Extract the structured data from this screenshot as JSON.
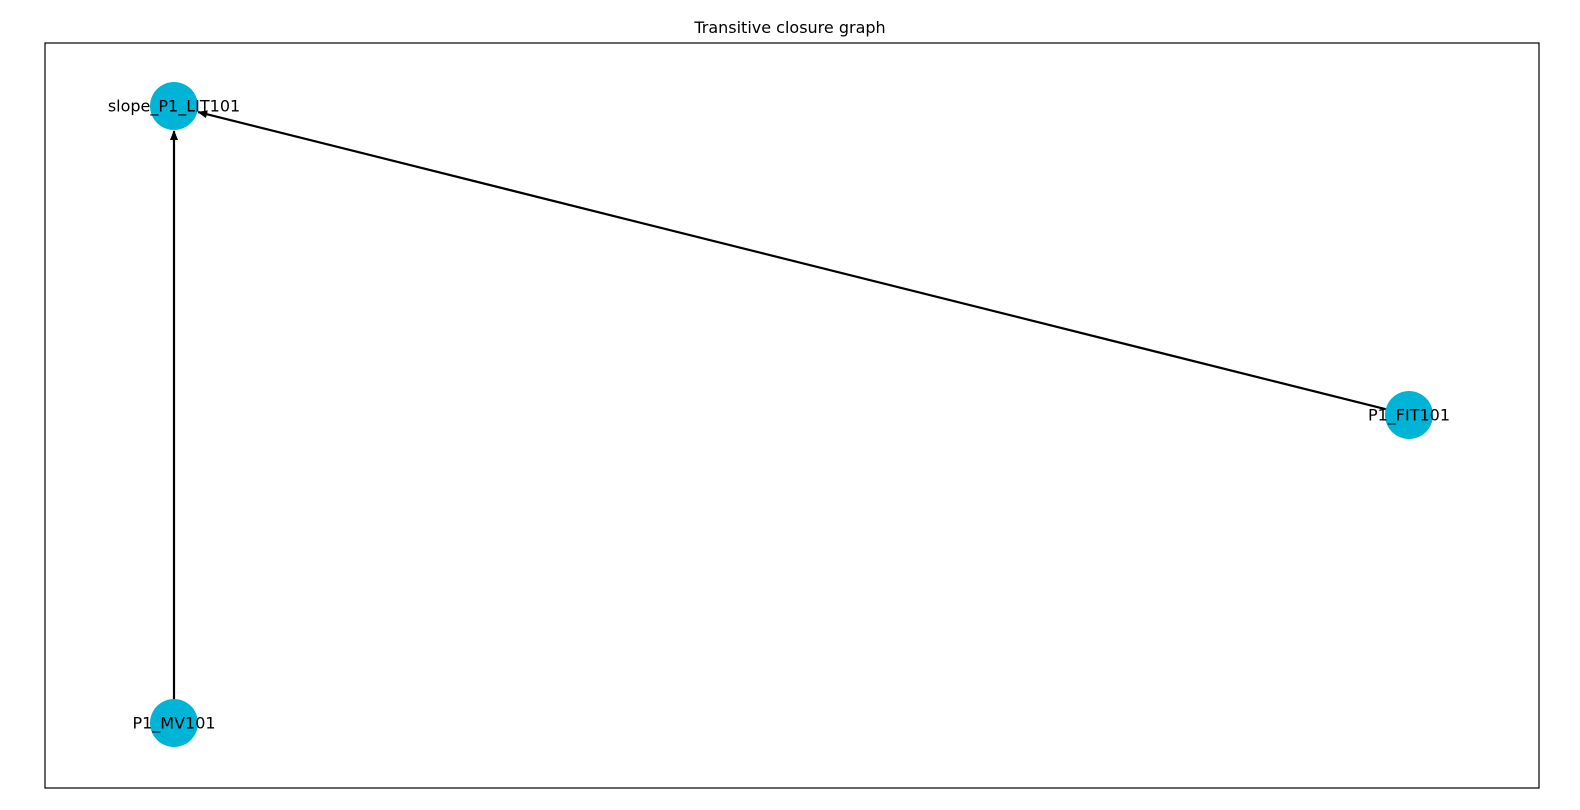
{
  "figure": {
    "title": "Transitive closure graph"
  },
  "graph": {
    "node_color": "#00b4d8",
    "edge_color": "#000000",
    "nodes": [
      {
        "id": "slope_P1_LIT101",
        "label": "slope_P1_LIT101"
      },
      {
        "id": "P1_FIT101",
        "label": "P1_FIT101"
      },
      {
        "id": "P1_MV101",
        "label": "P1_MV101"
      }
    ],
    "edges": [
      {
        "source": "P1_FIT101",
        "target": "slope_P1_LIT101",
        "directed": true
      },
      {
        "source": "P1_MV101",
        "target": "slope_P1_LIT101",
        "directed": true
      }
    ]
  }
}
